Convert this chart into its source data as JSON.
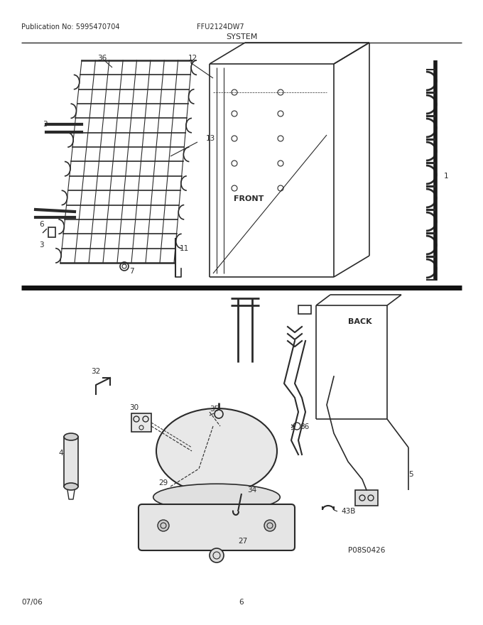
{
  "title": "SYSTEM",
  "pub_no": "Publication No: 5995470704",
  "model": "FFU2124DW7",
  "date": "07/06",
  "page": "6",
  "part_code": "P08S0426",
  "bg_color": "#ffffff",
  "line_color": "#2a2a2a",
  "label_fontsize": 7.5
}
